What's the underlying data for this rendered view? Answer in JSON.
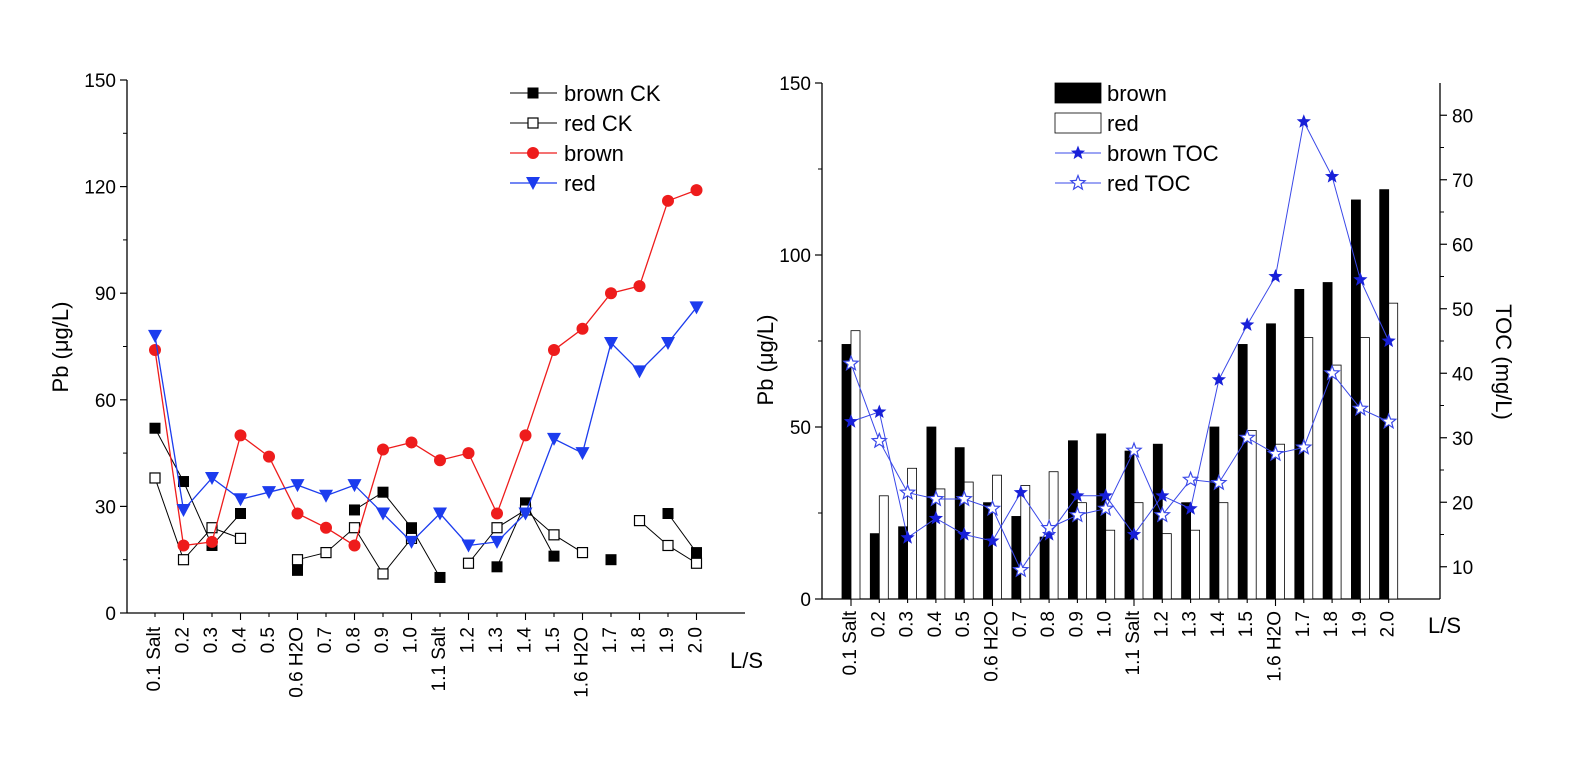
{
  "chart_data": [
    {
      "type": "line",
      "ylabel": "Pb (μg/L)",
      "xlabel": "L/S",
      "ylim": [
        0,
        150
      ],
      "yticks": [
        0,
        30,
        60,
        90,
        120,
        150
      ],
      "categories": [
        "0.1 Salt",
        "0.2",
        "0.3",
        "0.4",
        "0.5",
        "0.6 H2O",
        "0.7",
        "0.8",
        "0.9",
        "1.0",
        "1.1 Salt",
        "1.2",
        "1.3",
        "1.4",
        "1.5",
        "1.6 H2O",
        "1.7",
        "1.8",
        "1.9",
        "2.0"
      ],
      "category_subscripts": {
        "0.6 H2O": "2",
        "1.6 H2O": "2"
      },
      "legend_position": "top-right",
      "series": [
        {
          "name": "brown CK",
          "color": "#000000",
          "marker": "filled-square",
          "x": [
            0.1,
            0.2,
            0.3,
            0.4,
            0.6,
            0.8,
            0.9,
            1.0,
            1.1,
            1.3,
            1.4,
            1.5,
            1.7,
            1.9,
            2.0
          ],
          "y": [
            52,
            37,
            19,
            28,
            12,
            29,
            34,
            24,
            10,
            13,
            31,
            16,
            15,
            28,
            17
          ],
          "segments": [
            [
              0,
              1,
              2,
              3
            ],
            [
              4
            ],
            [
              5,
              6,
              7,
              8
            ],
            [
              9,
              10,
              11
            ],
            [
              12
            ],
            [
              13,
              14
            ]
          ]
        },
        {
          "name": "red CK",
          "color": "#000000",
          "marker": "open-square",
          "x": [
            0.1,
            0.2,
            0.3,
            0.4,
            0.6,
            0.7,
            0.8,
            0.9,
            1.0,
            1.2,
            1.3,
            1.4,
            1.5,
            1.6,
            1.8,
            1.9,
            2.0
          ],
          "y": [
            38,
            15,
            24,
            21,
            15,
            17,
            24,
            11,
            21,
            14,
            24,
            29,
            22,
            17,
            26,
            19,
            14
          ],
          "segments": [
            [
              0,
              1,
              2,
              3
            ],
            [
              4,
              5,
              6,
              7,
              8
            ],
            [
              9,
              10,
              11,
              12,
              13
            ],
            [
              14,
              15,
              16
            ]
          ]
        },
        {
          "name": "brown",
          "color": "#ee1c1c",
          "marker": "filled-circle",
          "x": [
            0.1,
            0.2,
            0.3,
            0.4,
            0.5,
            0.6,
            0.7,
            0.8,
            0.9,
            1.0,
            1.1,
            1.2,
            1.3,
            1.4,
            1.5,
            1.6,
            1.7,
            1.8,
            1.9,
            2.0
          ],
          "y": [
            74,
            19,
            20,
            50,
            44,
            28,
            24,
            19,
            46,
            48,
            43,
            45,
            28,
            50,
            74,
            80,
            90,
            92,
            116,
            119
          ]
        },
        {
          "name": "red",
          "color": "#1c3cee",
          "marker": "filled-triangle-down",
          "x": [
            0.1,
            0.2,
            0.3,
            0.4,
            0.5,
            0.6,
            0.7,
            0.8,
            0.9,
            1.0,
            1.1,
            1.2,
            1.3,
            1.4,
            1.5,
            1.6,
            1.7,
            1.8,
            1.9,
            2.0
          ],
          "y": [
            78,
            29,
            38,
            32,
            34,
            36,
            33,
            36,
            28,
            20,
            28,
            19,
            20,
            28,
            49,
            45,
            76,
            68,
            76,
            86
          ]
        }
      ]
    },
    {
      "type": "bar",
      "ylabel": "Pb (μg/L)",
      "y2label": "TOC (mg/L)",
      "xlabel": "L/S",
      "ylim": [
        0,
        150
      ],
      "yticks": [
        0,
        50,
        100,
        150
      ],
      "y2lim": [
        5,
        85
      ],
      "y2ticks": [
        10,
        20,
        30,
        40,
        50,
        60,
        70,
        80
      ],
      "categories": [
        "0.1 Salt",
        "0.2",
        "0.3",
        "0.4",
        "0.5",
        "0.6 H2O",
        "0.7",
        "0.8",
        "0.9",
        "1.0",
        "1.1 Salt",
        "1.2",
        "1.3",
        "1.4",
        "1.5",
        "1.6 H2O",
        "1.7",
        "1.8",
        "1.9",
        "2.0"
      ],
      "category_subscripts": {
        "0.6 H2O": "2",
        "1.6 H2O": "2"
      },
      "legend_position": "top-center",
      "series": [
        {
          "name": "brown",
          "kind": "bar",
          "color": "#000000",
          "values": [
            74,
            19,
            21,
            50,
            44,
            28,
            24,
            18,
            46,
            48,
            43,
            45,
            28,
            50,
            74,
            80,
            90,
            92,
            116,
            119
          ]
        },
        {
          "name": "red",
          "kind": "bar",
          "color": "#ffffff",
          "values": [
            78,
            30,
            38,
            32,
            34,
            36,
            33,
            37,
            28,
            20,
            28,
            19,
            20,
            28,
            49,
            45,
            76,
            68,
            76,
            86
          ]
        },
        {
          "name": "brown TOC",
          "kind": "line",
          "axis": "right",
          "color": "#3a48e8",
          "marker": "filled-star",
          "values": [
            32.5,
            34,
            14.5,
            17.5,
            15,
            14,
            21.5,
            15,
            21,
            21,
            15,
            21,
            19,
            39,
            47.5,
            55,
            79,
            70.5,
            54.5,
            45
          ]
        },
        {
          "name": "red TOC",
          "kind": "line",
          "axis": "right",
          "color": "#3a48e8",
          "marker": "open-star",
          "values": [
            41.5,
            29.5,
            21.5,
            20.5,
            20.5,
            19,
            9.5,
            16,
            18,
            19,
            28,
            18,
            23.5,
            23,
            30,
            27.5,
            28.5,
            40,
            34.5,
            32.5
          ]
        }
      ]
    }
  ]
}
